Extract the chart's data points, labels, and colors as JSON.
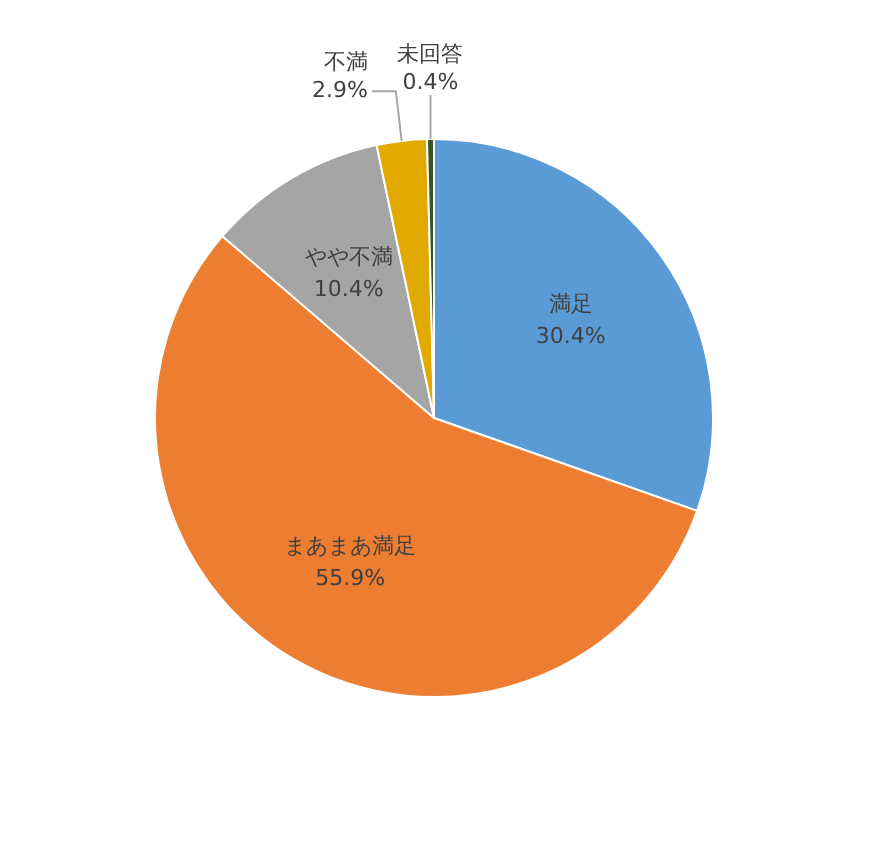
{
  "chart_data": {
    "type": "pie",
    "categories": [
      "満足",
      "まあまあ満足",
      "やや不満",
      "不満",
      "未回答"
    ],
    "values": [
      30.4,
      55.9,
      10.4,
      2.9,
      0.4
    ],
    "colors": [
      "#5b9bd5",
      "#ed7d31",
      "#a5a5a5",
      "#e2aa00",
      "#375623"
    ],
    "value_labels": [
      "30.4%",
      "55.9%",
      "10.4%",
      "2.9%",
      "0.4%"
    ],
    "legend": false
  }
}
